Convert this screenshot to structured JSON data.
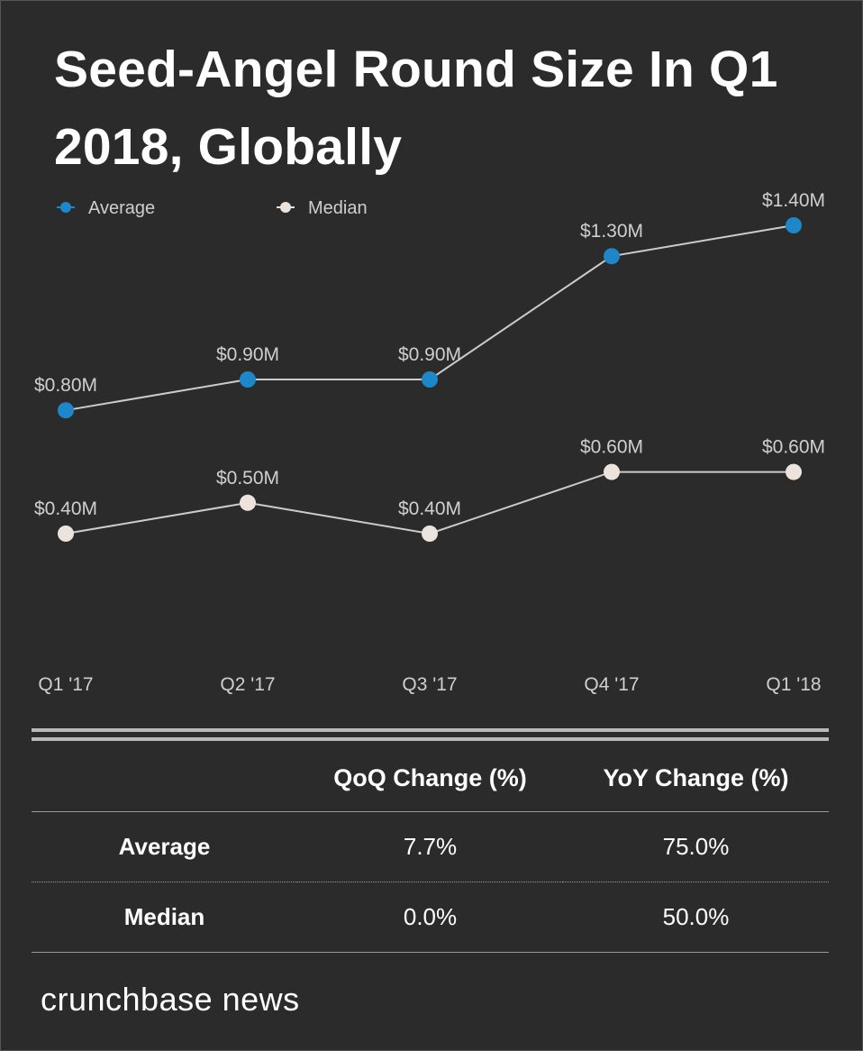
{
  "title": "Seed-Angel Round Size In Q1 2018, Globally",
  "chart_data": {
    "type": "line",
    "categories": [
      "Q1 '17",
      "Q2 '17",
      "Q3 '17",
      "Q4 '17",
      "Q1 '18"
    ],
    "series": [
      {
        "name": "Average",
        "color": "#1d87c9",
        "values": [
          0.8,
          0.9,
          0.9,
          1.3,
          1.4
        ],
        "labels": [
          "$0.80M",
          "$0.90M",
          "$0.90M",
          "$1.30M",
          "$1.40M"
        ]
      },
      {
        "name": "Median",
        "color": "#ece4dc",
        "values": [
          0.4,
          0.5,
          0.4,
          0.6,
          0.6
        ],
        "labels": [
          "$0.40M",
          "$0.50M",
          "$0.40M",
          "$0.60M",
          "$0.60M"
        ]
      }
    ],
    "line_color": "#cccccc",
    "xlabel": "",
    "ylabel": "",
    "grid": false,
    "legend": "top-left"
  },
  "table": {
    "headers": [
      "",
      "QoQ Change (%)",
      "YoY Change (%)"
    ],
    "rows": [
      {
        "label": "Average",
        "qoq": "7.7%",
        "yoy": "75.0%"
      },
      {
        "label": "Median",
        "qoq": "0.0%",
        "yoy": "50.0%"
      }
    ]
  },
  "footer": {
    "brand": "crunchbase news"
  }
}
